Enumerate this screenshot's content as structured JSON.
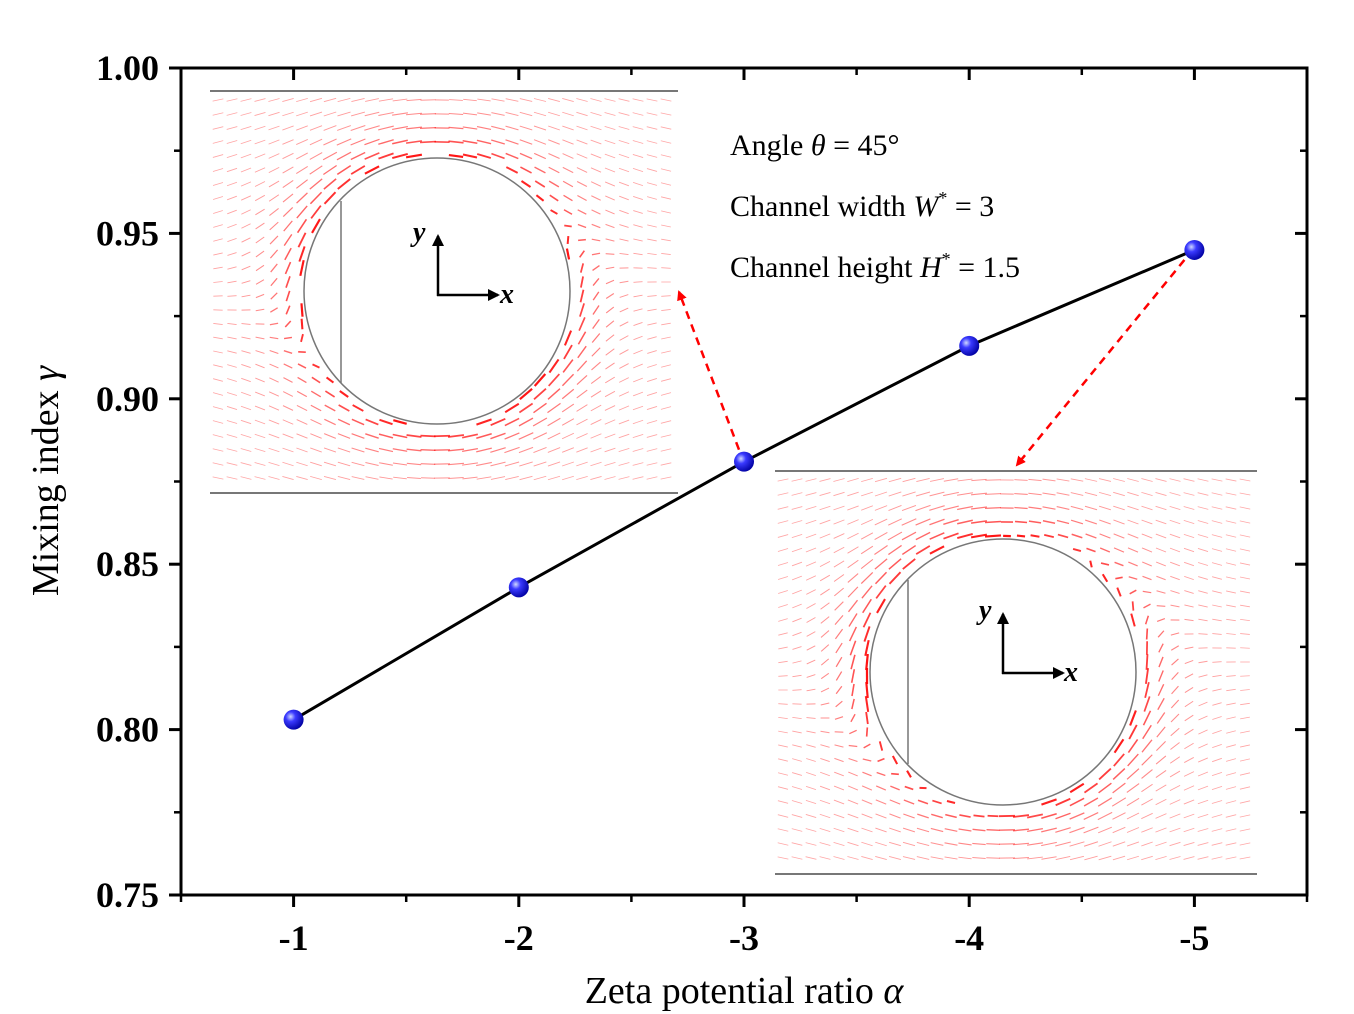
{
  "chart_data": {
    "type": "line",
    "xlabel": {
      "text": "Zeta potential ratio ",
      "symbol": "α"
    },
    "ylabel": {
      "text": "Mixing index ",
      "symbol": "γ"
    },
    "x": [
      -1,
      -2,
      -3,
      -4,
      -5
    ],
    "x_tick_labels": [
      "-1",
      "-2",
      "-3",
      "-4",
      "-5"
    ],
    "xlim": [
      -0.5,
      -5.5
    ],
    "ylim": [
      0.75,
      1.0
    ],
    "y_ticks": [
      0.75,
      0.8,
      0.85,
      0.9,
      0.95,
      1.0
    ],
    "y_tick_labels": [
      "0.75",
      "0.80",
      "0.85",
      "0.90",
      "0.95",
      "1.00"
    ],
    "series": [
      {
        "values": [
          0.803,
          0.843,
          0.881,
          0.916,
          0.945
        ],
        "line_color": "#000000",
        "marker_color": "#1a1aff"
      }
    ],
    "grid": false,
    "annotations": {
      "line1": {
        "text": "Angle ",
        "symbol": "θ",
        "rest": " = 45°"
      },
      "line2": {
        "text": "Channel  width ",
        "symbol": "W",
        "sup": "*",
        "rest": " = 3"
      },
      "line3": {
        "text": "Channel  height ",
        "symbol": "H",
        "sup": "*",
        "rest": " = 1.5"
      }
    },
    "insets": [
      {
        "points_to_x": -3,
        "axis_x_label": "x",
        "axis_y_label": "y",
        "arrow_color": "#ff0000"
      },
      {
        "points_to_x": -5,
        "axis_x_label": "x",
        "axis_y_label": "y",
        "arrow_color": "#ff0000"
      }
    ]
  }
}
